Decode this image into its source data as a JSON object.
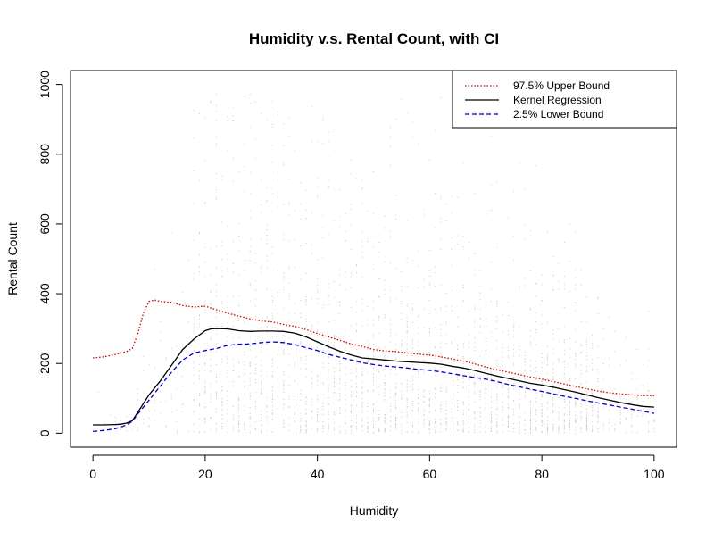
{
  "chart_data": {
    "type": "scatter",
    "title": "Humidity v.s. Rental Count, with CI",
    "xlabel": "Humidity",
    "ylabel": "Rental Count",
    "xlim": [
      -4,
      104
    ],
    "ylim": [
      -40,
      1040
    ],
    "x_ticks": [
      0,
      20,
      40,
      60,
      80,
      100
    ],
    "y_ticks": [
      0,
      200,
      400,
      600,
      800,
      1000
    ],
    "grid": false,
    "legend_position": "top-right",
    "scatter_note": "grey point cloud of hourly rental counts vs humidity (0-100)",
    "series": [
      {
        "name": "97.5% Upper Bound",
        "color": "#d40000",
        "dash": "dotted",
        "x": [
          0,
          2,
          4,
          6,
          7,
          8,
          9,
          10,
          11,
          12,
          14,
          16,
          18,
          20,
          22,
          24,
          26,
          28,
          30,
          32,
          34,
          36,
          38,
          40,
          42,
          44,
          46,
          48,
          50,
          52,
          54,
          56,
          58,
          60,
          62,
          64,
          66,
          68,
          70,
          72,
          74,
          76,
          78,
          80,
          82,
          84,
          86,
          88,
          90,
          92,
          94,
          96,
          98,
          100
        ],
        "y": [
          216,
          219,
          226,
          234,
          243,
          285,
          345,
          378,
          382,
          378,
          375,
          366,
          362,
          364,
          354,
          344,
          336,
          328,
          322,
          319,
          312,
          306,
          297,
          286,
          276,
          266,
          256,
          249,
          240,
          236,
          234,
          230,
          227,
          224,
          219,
          213,
          207,
          199,
          190,
          182,
          175,
          168,
          161,
          155,
          148,
          141,
          134,
          127,
          121,
          116,
          113,
          110,
          108,
          108
        ]
      },
      {
        "name": "Kernel Regression",
        "color": "#000000",
        "dash": "solid",
        "x": [
          0,
          2,
          4,
          5,
          6,
          7,
          8,
          10,
          12,
          14,
          16,
          18,
          20,
          21,
          22,
          24,
          26,
          28,
          30,
          32,
          34,
          36,
          38,
          40,
          42,
          44,
          46,
          48,
          50,
          52,
          54,
          56,
          58,
          60,
          62,
          64,
          66,
          68,
          70,
          72,
          74,
          76,
          78,
          80,
          82,
          84,
          86,
          88,
          90,
          92,
          94,
          96,
          98,
          100
        ],
        "y": [
          24,
          24,
          25,
          26,
          29,
          36,
          60,
          110,
          150,
          195,
          240,
          270,
          294,
          299,
          300,
          299,
          294,
          292,
          293,
          293,
          292,
          287,
          276,
          262,
          248,
          235,
          224,
          216,
          213,
          210,
          207,
          205,
          203,
          201,
          198,
          192,
          187,
          180,
          172,
          164,
          157,
          150,
          143,
          138,
          132,
          125,
          118,
          110,
          102,
          95,
          88,
          82,
          77,
          75
        ]
      },
      {
        "name": "2.5% Lower Bound",
        "color": "#0000cc",
        "dash": "dashed",
        "x": [
          0,
          2,
          4,
          5,
          6,
          7,
          8,
          10,
          12,
          14,
          16,
          18,
          20,
          22,
          24,
          26,
          28,
          30,
          32,
          34,
          36,
          38,
          40,
          42,
          44,
          46,
          48,
          50,
          52,
          54,
          56,
          58,
          60,
          62,
          64,
          66,
          68,
          70,
          72,
          74,
          76,
          78,
          80,
          82,
          84,
          86,
          88,
          90,
          92,
          94,
          96,
          98,
          100
        ],
        "y": [
          5,
          8,
          13,
          18,
          24,
          34,
          55,
          95,
          135,
          175,
          210,
          230,
          237,
          243,
          252,
          255,
          256,
          260,
          262,
          260,
          254,
          245,
          237,
          226,
          218,
          210,
          202,
          197,
          193,
          190,
          187,
          183,
          180,
          176,
          171,
          165,
          160,
          155,
          148,
          140,
          133,
          126,
          120,
          113,
          106,
          100,
          93,
          87,
          81,
          75,
          69,
          63,
          57
        ]
      }
    ]
  }
}
